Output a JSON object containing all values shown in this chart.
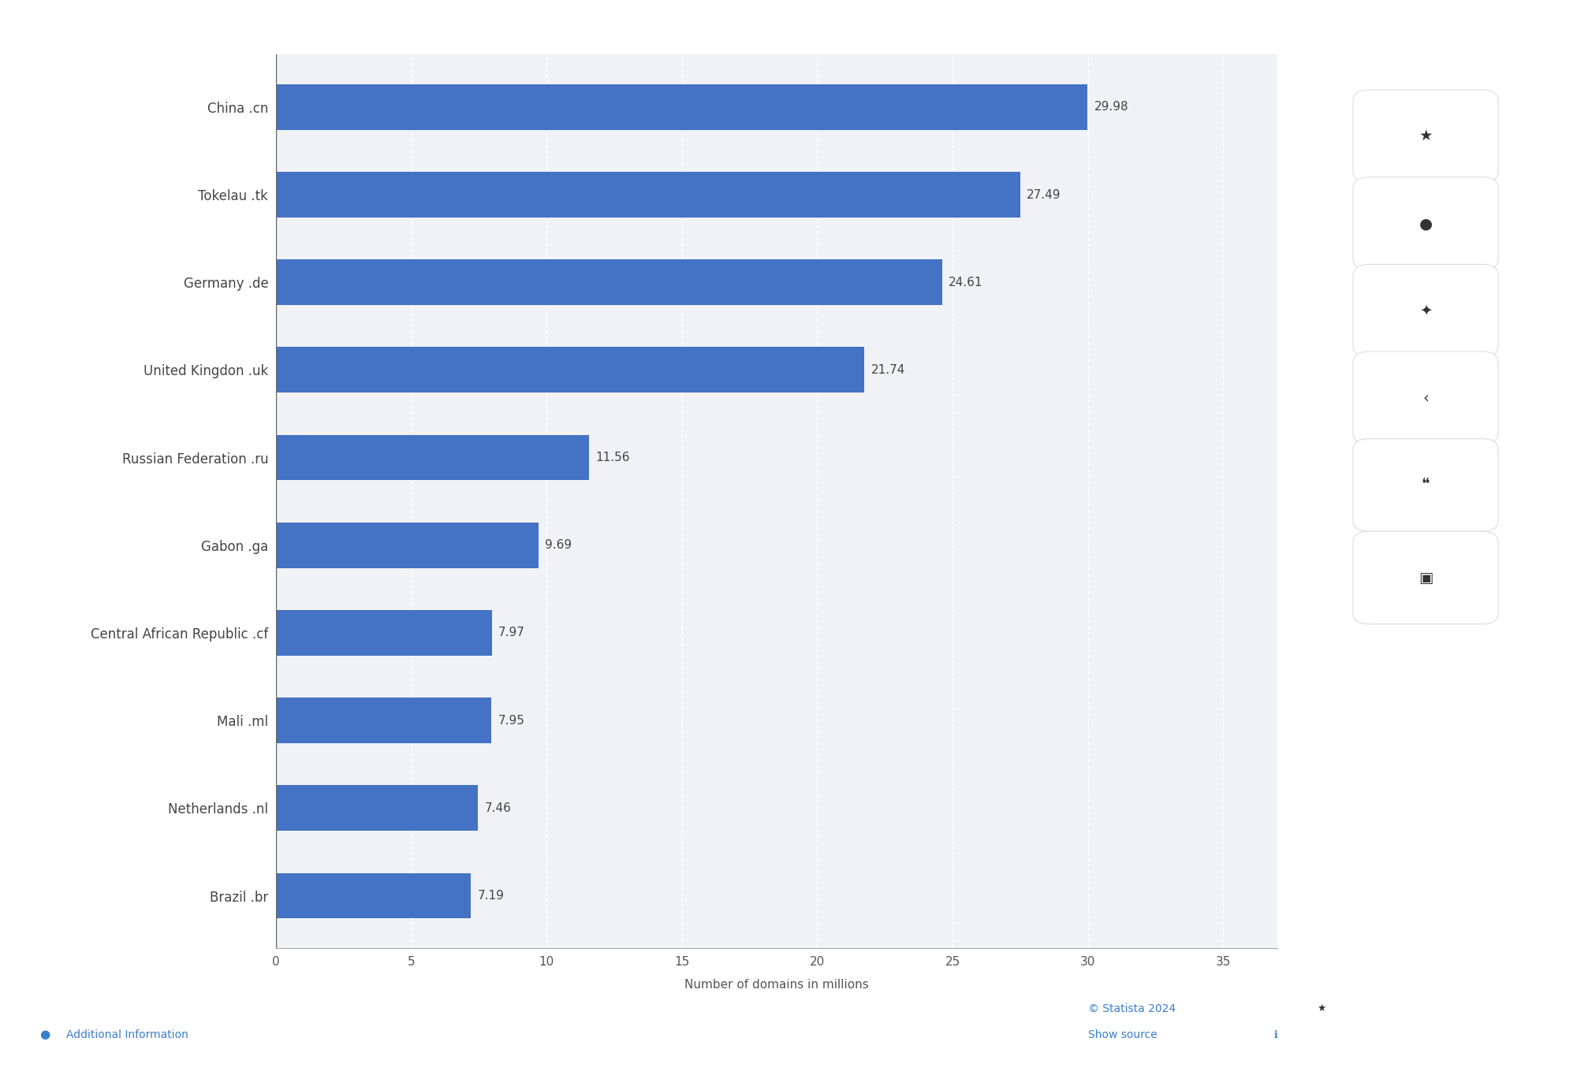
{
  "categories": [
    "Brazil .br",
    "Netherlands .nl",
    "Mali .ml",
    "Central African Republic .cf",
    "Gabon .ga",
    "Russian Federation .ru",
    "United Kingdon .uk",
    "Germany .de",
    "Tokelau .tk",
    "China .cn"
  ],
  "values": [
    7.19,
    7.46,
    7.95,
    7.97,
    9.69,
    11.56,
    21.74,
    24.61,
    27.49,
    29.98
  ],
  "bar_color": "#4472c4",
  "background_color": "#ffffff",
  "plot_bg_color": "#f0f2f5",
  "xlabel": "Number of domains in millions",
  "xlim": [
    0,
    37
  ],
  "xticks": [
    0,
    5,
    10,
    15,
    20,
    25,
    30,
    35
  ],
  "label_fontsize": 12,
  "tick_fontsize": 11,
  "xlabel_fontsize": 11,
  "value_label_fontsize": 11,
  "footer_statista": "© Statista 2024",
  "footer_source": "Show source",
  "footer_info": "Additional Information",
  "icon_symbols": [
    "★",
    "●",
    "⚙",
    "<",
    "““",
    "■"
  ],
  "right_panel_bg": "#f0f0f0",
  "icon_color": "#333333"
}
